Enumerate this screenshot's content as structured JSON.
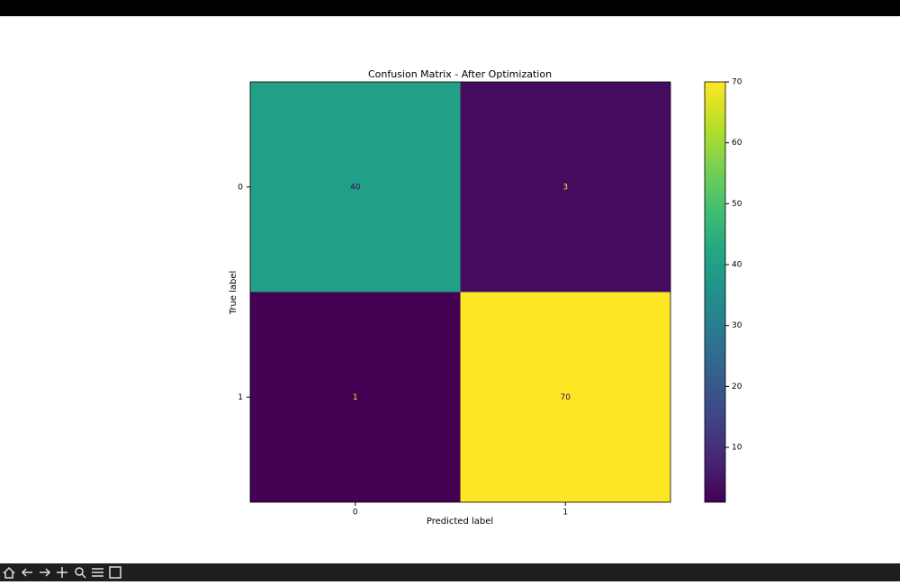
{
  "chart_data": {
    "type": "heatmap",
    "title": "Confusion Matrix - After Optimization",
    "xlabel": "Predicted label",
    "ylabel": "True label",
    "x_categories": [
      "0",
      "1"
    ],
    "y_categories": [
      "0",
      "1"
    ],
    "values": [
      [
        40,
        3
      ],
      [
        1,
        70
      ]
    ],
    "colormap": "viridis",
    "clim": [
      1,
      70
    ],
    "colorbar_ticks": [
      10,
      20,
      30,
      40,
      50,
      60,
      70
    ]
  }
}
